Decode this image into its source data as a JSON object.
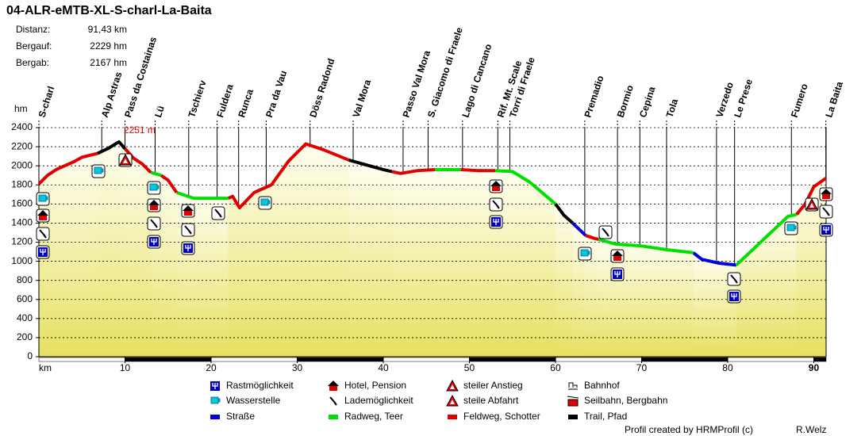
{
  "chart_data": {
    "type": "elevation-profile",
    "title": "04-ALR-eMTB-XL-S-charl-La-Baita",
    "stats": [
      {
        "label": "Distanz:",
        "value": "91,43 km"
      },
      {
        "label": "Bergauf:",
        "value": "2229 hm"
      },
      {
        "label": "Bergab:",
        "value": "2167 hm"
      }
    ],
    "y_label": "hm",
    "x_label": "km",
    "xlim": [
      0,
      91.43
    ],
    "xticks": [
      10,
      20,
      30,
      40,
      50,
      60,
      70,
      80,
      90
    ],
    "ylim": [
      0,
      2400
    ],
    "yticks": [
      0,
      200,
      400,
      600,
      800,
      1000,
      1200,
      1400,
      1600,
      1800,
      2000,
      2200,
      2400
    ],
    "grid": true,
    "waypoints": [
      {
        "name": "S-charl",
        "x": 0
      },
      {
        "name": "Alp Astras",
        "x": 7.3
      },
      {
        "name": "Pass da Costainas",
        "x": 10.0
      },
      {
        "name": "Lü",
        "x": 13.5
      },
      {
        "name": "Tschierv",
        "x": 17.4
      },
      {
        "name": "Fuldera",
        "x": 20.7
      },
      {
        "name": "Runca",
        "x": 23.2
      },
      {
        "name": "Pra da Vau",
        "x": 26.4
      },
      {
        "name": "Döss Radond",
        "x": 31.5
      },
      {
        "name": "Val Mora",
        "x": 36.5
      },
      {
        "name": "Passo Val Mora",
        "x": 42.3
      },
      {
        "name": "S. Giacomo di Fraele",
        "x": 45.2
      },
      {
        "name": "Lago di Cancano",
        "x": 49.2
      },
      {
        "name": "Rif. Mt. Scale",
        "x": 53.3
      },
      {
        "name": "Torri di Fraele",
        "x": 54.7
      },
      {
        "name": "Premadio",
        "x": 63.4
      },
      {
        "name": "Bormio",
        "x": 67.2
      },
      {
        "name": "Cepina",
        "x": 69.8
      },
      {
        "name": "Tola",
        "x": 72.9
      },
      {
        "name": "Verzedo",
        "x": 78.7
      },
      {
        "name": "Le Prese",
        "x": 80.8
      },
      {
        "name": "Fumero",
        "x": 87.4
      },
      {
        "name": "La Baita",
        "x": 91.4
      }
    ],
    "series": [
      {
        "name": "Straße",
        "color": "#0000e0",
        "x": [
          62,
          63.5,
          null,
          76,
          77,
          79,
          81
        ],
        "values": [
          1400,
          1270,
          null,
          1090,
          1020,
          980,
          960
        ]
      },
      {
        "name": "Radweg, Teer",
        "color": "#00e000",
        "x": [
          13,
          14.2,
          null,
          16,
          18,
          22,
          null,
          46,
          49,
          null,
          53,
          55,
          57,
          60,
          null,
          65,
          67,
          70,
          73,
          76,
          null,
          81,
          83,
          85,
          87,
          88
        ],
        "values": [
          1930,
          1900,
          null,
          1720,
          1660,
          1660,
          null,
          1960,
          1960,
          null,
          1950,
          1940,
          1830,
          1600,
          null,
          1230,
          1180,
          1160,
          1120,
          1090,
          null,
          960,
          1130,
          1300,
          1470,
          1490
        ]
      },
      {
        "name": "Feldweg, Schotter",
        "color": "#e00000",
        "x": [
          0,
          1,
          2,
          4,
          5,
          6.8,
          null,
          10,
          11,
          12,
          13,
          null,
          14.2,
          15,
          16,
          null,
          22,
          22.5,
          23.3,
          25,
          27,
          29,
          31,
          33,
          36,
          null,
          41,
          42,
          44,
          46,
          null,
          49,
          51,
          53,
          null,
          63.5,
          64.5,
          65,
          null,
          88,
          89,
          90,
          91.4
        ],
        "values": [
          1810,
          1900,
          1960,
          2040,
          2090,
          2130,
          null,
          2180,
          2080,
          2020,
          1930,
          null,
          1900,
          1850,
          1720,
          null,
          1660,
          1680,
          1560,
          1720,
          1800,
          2050,
          2230,
          2170,
          2060,
          null,
          1940,
          1920,
          1950,
          1960,
          null,
          1960,
          1950,
          1950,
          null,
          1270,
          1240,
          1230,
          null,
          1490,
          1600,
          1780,
          1870
        ]
      },
      {
        "name": "Trail, Pfad",
        "color": "#000000",
        "x": [
          6.8,
          8,
          9.3,
          10,
          null,
          36,
          38,
          40,
          41,
          null,
          60,
          61,
          62
        ],
        "values": [
          2130,
          2180,
          2251,
          2180,
          null,
          2060,
          2010,
          1960,
          1940,
          null,
          1600,
          1480,
          1400
        ]
      }
    ],
    "annotations": [
      {
        "text": "2251 m",
        "x": 9.3,
        "y": 2251
      }
    ],
    "legend_items": [
      "Rastmöglichkeit",
      "Hotel, Pension",
      "steiler Anstieg",
      "Bahnhof",
      "Wasserstelle",
      "Lademöglichkeit",
      "steile Abfahrt",
      "Seilbahn, Bergbahn"
    ],
    "footer": {
      "credit": "Profil created by HRMProfil (c)",
      "author": "R.Welz"
    }
  }
}
